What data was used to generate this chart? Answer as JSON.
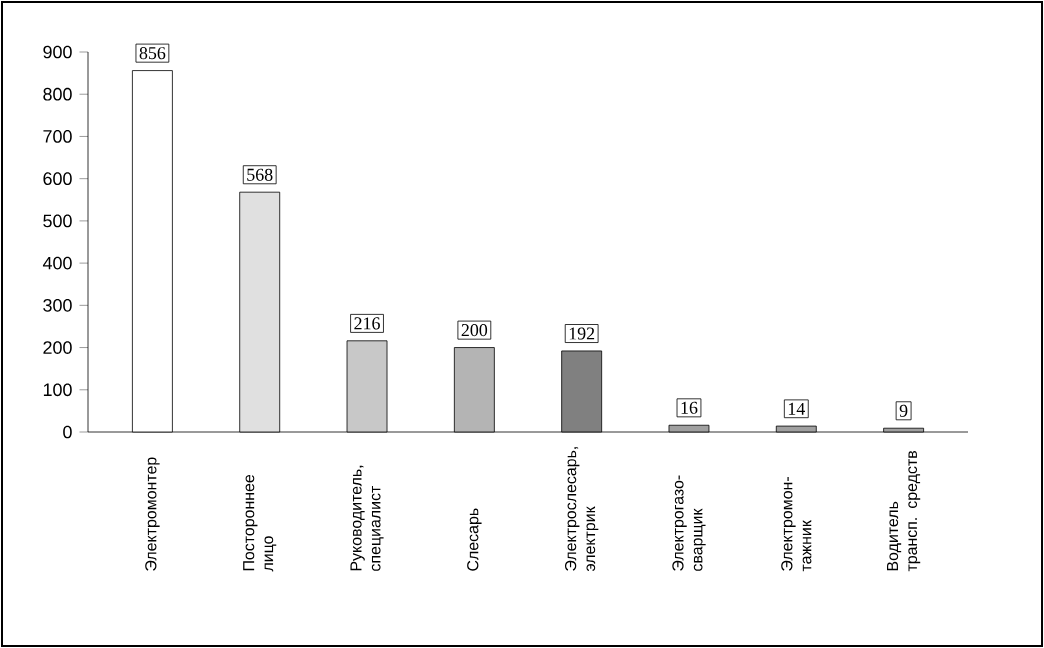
{
  "chart_data": {
    "type": "bar",
    "categories": [
      "Электромонтер",
      "Постороннее лицо",
      "Руководитель, специалист",
      "Слесарь",
      "Электрослесарь, электрик",
      "Электрогазо-сварщик",
      "Электромон-тажник",
      "Водитель трансп. средств"
    ],
    "values": [
      856,
      568,
      216,
      200,
      192,
      16,
      14,
      9
    ],
    "colors": [
      "#ffffff",
      "#e0e0e0",
      "#c8c8c8",
      "#b4b4b4",
      "#808080",
      "#a0a0a0",
      "#a0a0a0",
      "#a0a0a0"
    ],
    "ylim": [
      0,
      900
    ],
    "yticks": [
      0,
      100,
      200,
      300,
      400,
      500,
      600,
      700,
      800,
      900
    ],
    "data_labels": true,
    "grid": false
  }
}
